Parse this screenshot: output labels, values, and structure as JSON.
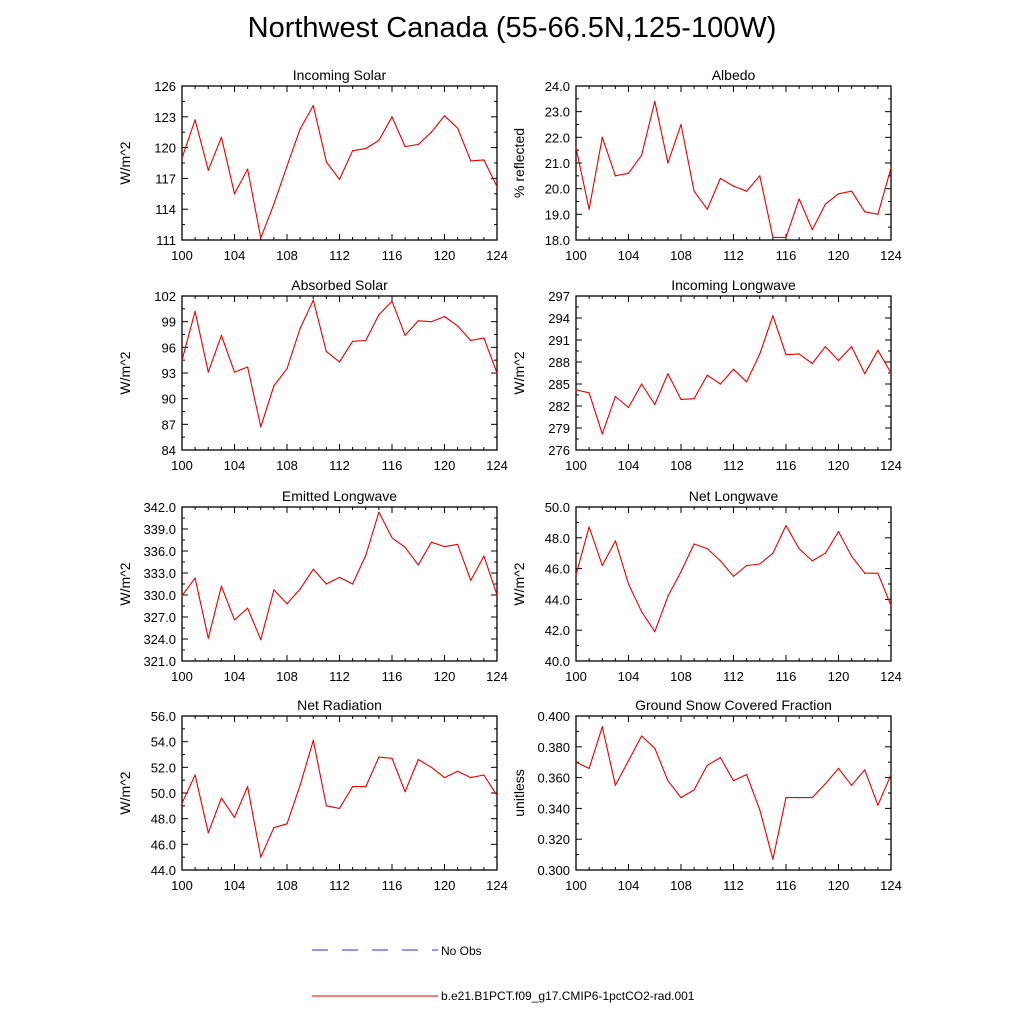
{
  "title": "Northwest Canada (55-66.5N,125-100W)",
  "colors": {
    "series": "#e60000",
    "obs": "#2b2bd6",
    "axis": "#000000"
  },
  "legend": {
    "placement": "bottom-center",
    "entries": [
      {
        "label": "No Obs",
        "style": "dashed",
        "color": "#2b2bd6"
      },
      {
        "label": "b.e21.B1PCT.f09_g17.CMIP6-1pctCO2-rad.001",
        "style": "solid",
        "color": "#e60000"
      }
    ]
  },
  "chart_data": [
    {
      "type": "line",
      "title": "Incoming Solar",
      "xlabel": "",
      "ylabel": "W/m^2",
      "xlim": [
        100,
        124
      ],
      "ylim": [
        111,
        126
      ],
      "xticks": [
        "100",
        "104",
        "108",
        "112",
        "116",
        "120",
        "124"
      ],
      "yticks": [
        "111",
        "114",
        "117",
        "120",
        "123",
        "126"
      ],
      "x": [
        100,
        101,
        102,
        103,
        104,
        105,
        106,
        107,
        108,
        109,
        110,
        111,
        112,
        113,
        114,
        115,
        116,
        117,
        118,
        119,
        120,
        121,
        122,
        123,
        124
      ],
      "series": [
        {
          "values": [
            119.0,
            122.7,
            117.8,
            121.0,
            115.5,
            117.9,
            111.2,
            114.5,
            118.2,
            121.8,
            124.1,
            118.6,
            116.9,
            119.7,
            119.9,
            120.7,
            123.0,
            120.1,
            120.3,
            121.5,
            123.1,
            121.9,
            118.7,
            118.8,
            116.2
          ]
        }
      ],
      "grid": false
    },
    {
      "type": "line",
      "title": "Albedo",
      "xlabel": "",
      "ylabel": "% reflected",
      "xlim": [
        100,
        124
      ],
      "ylim": [
        18.0,
        24.0
      ],
      "xticks": [
        "100",
        "104",
        "108",
        "112",
        "116",
        "120",
        "124"
      ],
      "yticks": [
        "18.0",
        "19.0",
        "20.0",
        "21.0",
        "22.0",
        "23.0",
        "24.0"
      ],
      "x": [
        100,
        101,
        102,
        103,
        104,
        105,
        106,
        107,
        108,
        109,
        110,
        111,
        112,
        113,
        114,
        115,
        116,
        117,
        118,
        119,
        120,
        121,
        122,
        123,
        124
      ],
      "series": [
        {
          "values": [
            21.6,
            19.2,
            22.0,
            20.5,
            20.6,
            21.3,
            23.4,
            21.0,
            22.5,
            19.9,
            19.2,
            20.4,
            20.1,
            19.9,
            20.5,
            18.1,
            18.1,
            19.6,
            18.4,
            19.4,
            19.8,
            19.9,
            19.1,
            19.0,
            20.8
          ]
        }
      ],
      "grid": false
    },
    {
      "type": "line",
      "title": "Absorbed Solar",
      "xlabel": "",
      "ylabel": "W/m^2",
      "xlim": [
        100,
        124
      ],
      "ylim": [
        84,
        102
      ],
      "xticks": [
        "100",
        "104",
        "108",
        "112",
        "116",
        "120",
        "124"
      ],
      "yticks": [
        "84",
        "87",
        "90",
        "93",
        "96",
        "99",
        "102"
      ],
      "x": [
        100,
        101,
        102,
        103,
        104,
        105,
        106,
        107,
        108,
        109,
        110,
        111,
        112,
        113,
        114,
        115,
        116,
        117,
        118,
        119,
        120,
        121,
        122,
        123,
        124
      ],
      "series": [
        {
          "values": [
            94.5,
            100.2,
            93.1,
            97.4,
            93.1,
            93.7,
            86.7,
            91.5,
            93.5,
            98.2,
            101.5,
            95.5,
            94.3,
            96.7,
            96.8,
            99.8,
            101.4,
            97.4,
            99.1,
            99.0,
            99.6,
            98.5,
            96.8,
            97.1,
            93.0
          ]
        }
      ],
      "grid": false
    },
    {
      "type": "line",
      "title": "Incoming Longwave",
      "xlabel": "",
      "ylabel": "W/m^2",
      "xlim": [
        100,
        124
      ],
      "ylim": [
        276,
        297
      ],
      "xticks": [
        "100",
        "104",
        "108",
        "112",
        "116",
        "120",
        "124"
      ],
      "yticks": [
        "276",
        "279",
        "282",
        "285",
        "288",
        "291",
        "294",
        "297"
      ],
      "x": [
        100,
        101,
        102,
        103,
        104,
        105,
        106,
        107,
        108,
        109,
        110,
        111,
        112,
        113,
        114,
        115,
        116,
        117,
        118,
        119,
        120,
        121,
        122,
        123,
        124
      ],
      "series": [
        {
          "values": [
            284.2,
            283.8,
            278.2,
            283.3,
            281.8,
            285.0,
            282.2,
            286.4,
            282.9,
            283.0,
            286.2,
            285.0,
            287.0,
            285.3,
            289.1,
            294.3,
            289.0,
            289.1,
            287.8,
            290.1,
            288.2,
            290.1,
            286.4,
            289.6,
            286.5
          ]
        }
      ],
      "grid": false
    },
    {
      "type": "line",
      "title": "Emitted Longwave",
      "xlabel": "",
      "ylabel": "W/m^2",
      "xlim": [
        100,
        124
      ],
      "ylim": [
        321.0,
        342.0
      ],
      "xticks": [
        "100",
        "104",
        "108",
        "112",
        "116",
        "120",
        "124"
      ],
      "yticks": [
        "321.0",
        "324.0",
        "327.0",
        "330.0",
        "333.0",
        "336.0",
        "339.0",
        "342.0"
      ],
      "x": [
        100,
        101,
        102,
        103,
        104,
        105,
        106,
        107,
        108,
        109,
        110,
        111,
        112,
        113,
        114,
        115,
        116,
        117,
        118,
        119,
        120,
        121,
        122,
        123,
        124
      ],
      "series": [
        {
          "values": [
            329.9,
            332.3,
            324.1,
            331.2,
            326.6,
            328.2,
            323.9,
            330.7,
            328.8,
            330.8,
            333.5,
            331.5,
            332.4,
            331.5,
            335.4,
            341.3,
            337.8,
            336.5,
            334.1,
            337.2,
            336.6,
            336.9,
            332.0,
            335.3,
            330.0
          ]
        }
      ],
      "grid": false
    },
    {
      "type": "line",
      "title": "Net Longwave",
      "xlabel": "",
      "ylabel": "W/m^2",
      "xlim": [
        100,
        124
      ],
      "ylim": [
        40.0,
        50.0
      ],
      "xticks": [
        "100",
        "104",
        "108",
        "112",
        "116",
        "120",
        "124"
      ],
      "yticks": [
        "40.0",
        "42.0",
        "44.0",
        "46.0",
        "48.0",
        "50.0"
      ],
      "x": [
        100,
        101,
        102,
        103,
        104,
        105,
        106,
        107,
        108,
        109,
        110,
        111,
        112,
        113,
        114,
        115,
        116,
        117,
        118,
        119,
        120,
        121,
        122,
        123,
        124
      ],
      "series": [
        {
          "values": [
            45.6,
            48.7,
            46.2,
            47.8,
            45.0,
            43.2,
            41.9,
            44.2,
            45.8,
            47.6,
            47.3,
            46.5,
            45.5,
            46.2,
            46.3,
            47.0,
            48.8,
            47.3,
            46.5,
            47.0,
            48.4,
            46.8,
            45.7,
            45.7,
            43.6
          ]
        }
      ],
      "grid": false
    },
    {
      "type": "line",
      "title": "Net Radiation",
      "xlabel": "",
      "ylabel": "W/m^2",
      "xlim": [
        100,
        124
      ],
      "ylim": [
        44.0,
        56.0
      ],
      "xticks": [
        "100",
        "104",
        "108",
        "112",
        "116",
        "120",
        "124"
      ],
      "yticks": [
        "44.0",
        "46.0",
        "48.0",
        "50.0",
        "52.0",
        "54.0",
        "56.0"
      ],
      "x": [
        100,
        101,
        102,
        103,
        104,
        105,
        106,
        107,
        108,
        109,
        110,
        111,
        112,
        113,
        114,
        115,
        116,
        117,
        118,
        119,
        120,
        121,
        122,
        123,
        124
      ],
      "series": [
        {
          "values": [
            49.2,
            51.4,
            46.9,
            49.6,
            48.1,
            50.5,
            45.0,
            47.3,
            47.6,
            50.6,
            54.1,
            49.0,
            48.8,
            50.5,
            50.5,
            52.8,
            52.7,
            50.1,
            52.6,
            52.0,
            51.2,
            51.7,
            51.2,
            51.4,
            49.8
          ]
        }
      ],
      "grid": false
    },
    {
      "type": "line",
      "title": "Ground Snow Covered Fraction",
      "xlabel": "",
      "ylabel": "unitless",
      "xlim": [
        100,
        124
      ],
      "ylim": [
        0.3,
        0.4
      ],
      "xticks": [
        "100",
        "104",
        "108",
        "112",
        "116",
        "120",
        "124"
      ],
      "yticks": [
        "0.300",
        "0.320",
        "0.340",
        "0.360",
        "0.380",
        "0.400"
      ],
      "x": [
        100,
        101,
        102,
        103,
        104,
        105,
        106,
        107,
        108,
        109,
        110,
        111,
        112,
        113,
        114,
        115,
        116,
        117,
        118,
        119,
        120,
        121,
        122,
        123,
        124
      ],
      "series": [
        {
          "values": [
            0.37,
            0.366,
            0.393,
            0.355,
            0.371,
            0.387,
            0.379,
            0.358,
            0.347,
            0.352,
            0.368,
            0.373,
            0.358,
            0.362,
            0.339,
            0.307,
            0.347,
            0.347,
            0.347,
            0.356,
            0.366,
            0.355,
            0.365,
            0.342,
            0.362
          ]
        }
      ],
      "grid": false
    }
  ]
}
